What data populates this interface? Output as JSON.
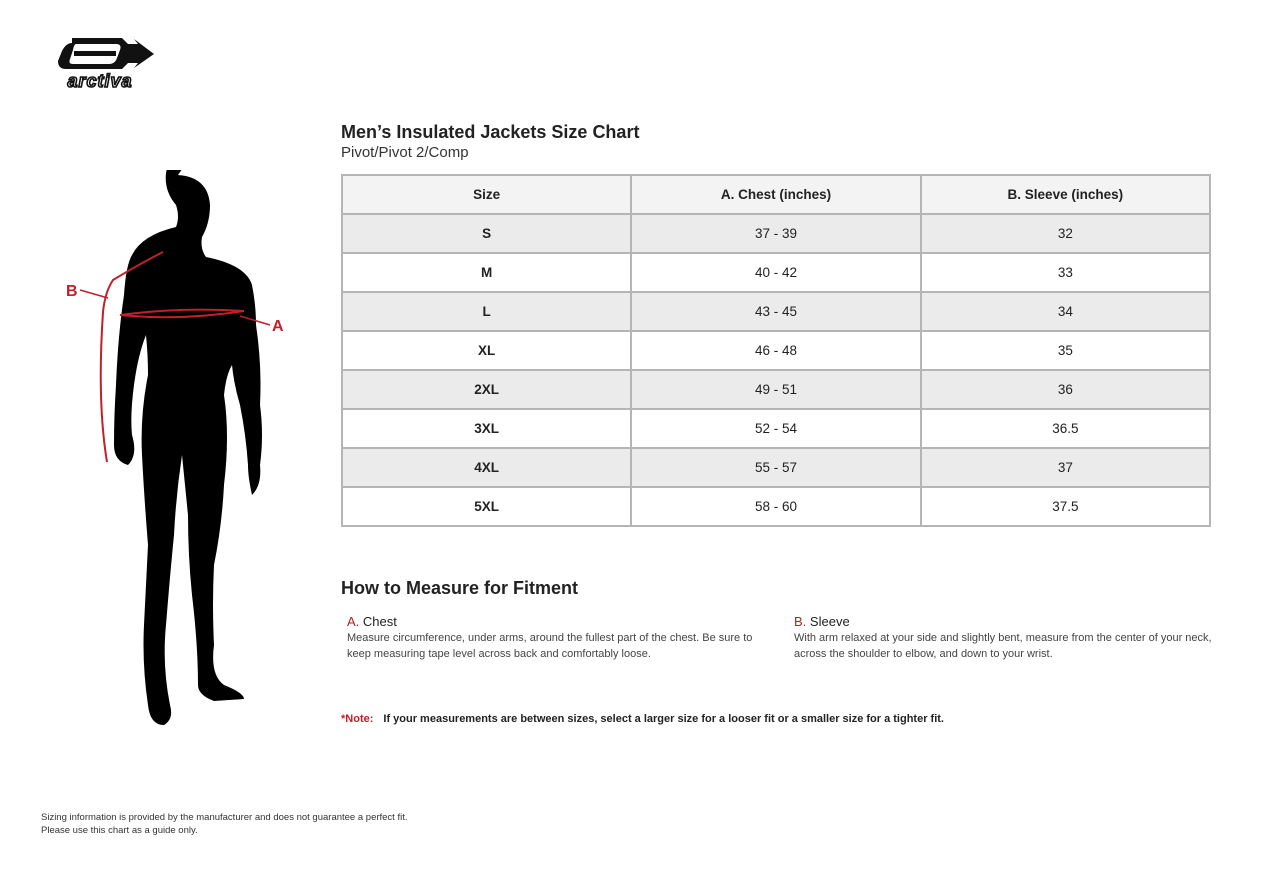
{
  "brand": {
    "logo_text": "arctiva"
  },
  "chart": {
    "title": "Men’s Insulated Jackets Size Chart",
    "subtitle": "Pivot/Pivot 2/Comp",
    "headers": [
      "Size",
      "A. Chest (inches)",
      "B. Sleeve (inches)"
    ],
    "rows": [
      [
        "S",
        "37 - 39",
        "32"
      ],
      [
        "M",
        "40 - 42",
        "33"
      ],
      [
        "L",
        "43 - 45",
        "34"
      ],
      [
        "XL",
        "46 - 48",
        "35"
      ],
      [
        "2XL",
        "49 - 51",
        "36"
      ],
      [
        "3XL",
        "52 - 54",
        "36.5"
      ],
      [
        "4XL",
        "55 - 57",
        "37"
      ],
      [
        "5XL",
        "58 - 60",
        "37.5"
      ]
    ]
  },
  "figure": {
    "label_a": "A",
    "label_b": "B",
    "accent": "#c0202a"
  },
  "how": {
    "title": "How to Measure for Fitment",
    "chest": {
      "letter": "A.",
      "name": "Chest",
      "text": "Measure circumference, under arms, around the fullest part of the chest. Be sure to keep measuring tape level across back and comfortably loose."
    },
    "sleeve": {
      "letter": "B.",
      "name": "Sleeve",
      "text": "With arm relaxed at your side and slightly bent, measure from the center of your neck, across the shoulder to elbow, and down to your wrist."
    }
  },
  "note": {
    "label": "*Note:",
    "text": "If your measurements are between sizes, select a larger size for a looser fit or a smaller size for a tighter fit."
  },
  "footer": {
    "line1": "Sizing information is provided by the manufacturer and does not guarantee a perfect fit.",
    "line2": "Please use this chart as a guide only."
  }
}
